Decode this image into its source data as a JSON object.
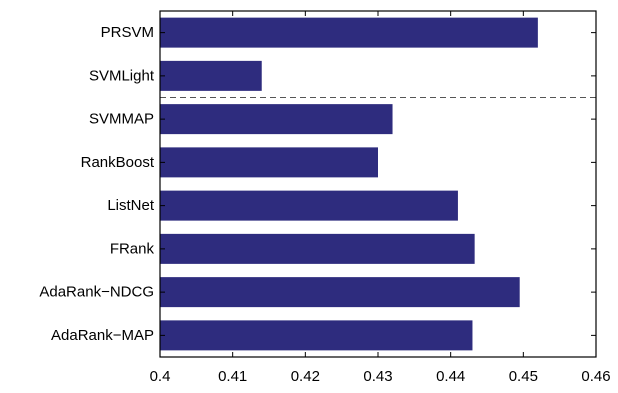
{
  "chart_data": {
    "type": "bar",
    "orientation": "horizontal",
    "categories": [
      "PRSVM",
      "SVMLight",
      "SVMMAP",
      "RankBoost",
      "ListNet",
      "FRank",
      "AdaRank−NDCG",
      "AdaRank−MAP"
    ],
    "values": [
      0.452,
      0.414,
      0.432,
      0.43,
      0.441,
      0.4433,
      0.4495,
      0.443
    ],
    "xlim": [
      0.4,
      0.46
    ],
    "xticks": [
      "0.4",
      "0.41",
      "0.42",
      "0.43",
      "0.44",
      "0.45",
      "0.46"
    ],
    "xtick_values": [
      0.4,
      0.41,
      0.42,
      0.43,
      0.44,
      0.45,
      0.46
    ],
    "title": "",
    "xlabel": "",
    "ylabel": "",
    "grid": false,
    "legend": "none",
    "separator_line": {
      "style": "dashed",
      "between": [
        "SVMLight",
        "SVMMAP"
      ]
    },
    "colors": {
      "bar": "#2e2c7e",
      "axis": "#000000",
      "separator": "#555555"
    }
  }
}
